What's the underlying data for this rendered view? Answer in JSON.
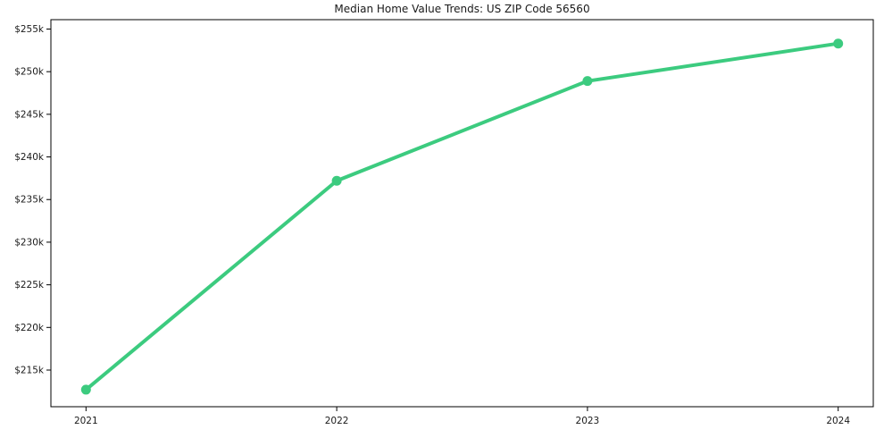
{
  "chart_data": {
    "type": "line",
    "title": "Median Home Value Trends: US ZIP Code 56560",
    "x": [
      2021,
      2022,
      2023,
      2024
    ],
    "values": [
      212700,
      237200,
      248900,
      253300
    ],
    "x_tick_labels": [
      "2021",
      "2022",
      "2023",
      "2024"
    ],
    "y_ticks": [
      215000,
      220000,
      225000,
      230000,
      235000,
      240000,
      245000,
      250000,
      255000
    ],
    "y_tick_labels": [
      "$215k",
      "$220k",
      "$225k",
      "$230k",
      "$235k",
      "$240k",
      "$245k",
      "$250k",
      "$255k"
    ],
    "xlabel": "",
    "ylabel": "",
    "xlim": [
      2020.86,
      2024.14
    ],
    "ylim": [
      210700,
      256100
    ],
    "grid": false,
    "legend": "none",
    "line_color": "#3ccb7f",
    "marker": "circle",
    "background": "#ffffff",
    "text_color": "#1a1a1a",
    "axis_color": "#000000"
  }
}
